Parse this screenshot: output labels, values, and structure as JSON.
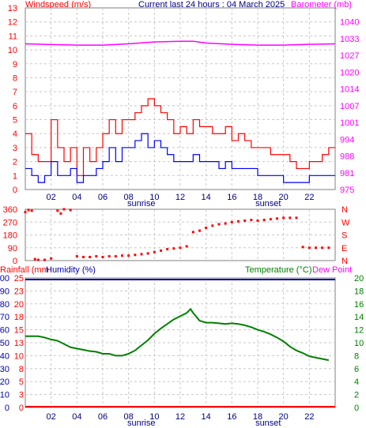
{
  "header": {
    "windspeed_label": "Windspeed (m/s)",
    "current_label": "Current last 24 hours : 04 March 2025",
    "barometer_label": "Barometer (mb)"
  },
  "time_axis": {
    "ticks": [
      "02",
      "04",
      "06",
      "08",
      "10",
      "12",
      "14",
      "16",
      "18",
      "20",
      "22"
    ],
    "hour_values": [
      2,
      4,
      6,
      8,
      10,
      12,
      14,
      16,
      18,
      20,
      22
    ],
    "sunrise_label": "sunrise",
    "sunset_label": "sunset",
    "sunrise_hour": 9.0,
    "sunset_hour": 18.8
  },
  "lower_header": {
    "rainfall_label": "Rainfall (mm",
    "humidity_label": "Humidity (%)",
    "temperature_label": "Temperature (°C)",
    "dewpoint_label": "Dew Point"
  },
  "colors": {
    "wind_gust": "#ff0000",
    "wind_avg": "#0000ff",
    "barometer": "#ff00ff",
    "direction": "#ff0000",
    "temperature": "#008000",
    "humidity": "#0000aa",
    "rainfall": "#ff0000",
    "frame": "#808080",
    "grid": "#c8c8c8"
  },
  "chart_data": [
    {
      "type": "line",
      "name": "wind-and-barometer",
      "x_unit": "hour",
      "xlim": [
        0,
        24
      ],
      "ylabel_left": "Windspeed (m/s)",
      "ylabel_right": "Barometer (mb)",
      "ylim_left": [
        0,
        13
      ],
      "y_ticks_left": [
        0,
        1,
        2,
        3,
        4,
        5,
        6,
        7,
        8,
        9,
        10,
        11,
        12,
        13
      ],
      "y_ticks_right": [
        "975",
        "981",
        "988",
        "994",
        "1001",
        "1007",
        "1014",
        "1020",
        "1027",
        "1033",
        "1040"
      ],
      "y_ticks_right_positions": [
        0,
        1.2,
        2.4,
        3.6,
        4.8,
        6.0,
        7.2,
        8.4,
        9.6,
        10.8,
        12.0
      ],
      "grid": true,
      "series": [
        {
          "name": "Gust",
          "x": [
            0,
            0.5,
            1,
            1.5,
            2,
            2.5,
            3,
            3.5,
            4,
            4.5,
            5,
            5.5,
            6,
            6.5,
            7,
            7.5,
            8,
            8.5,
            9,
            9.5,
            10,
            10.5,
            11,
            11.5,
            12,
            12.5,
            13,
            13.5,
            14,
            14.5,
            15,
            15.5,
            16,
            16.5,
            17,
            17.5,
            18,
            18.5,
            19,
            19.5,
            20,
            20.5,
            21,
            21.5,
            22,
            22.5,
            23,
            23.5
          ],
          "values": [
            4,
            2.5,
            2,
            2,
            5,
            3,
            2,
            3,
            1,
            3,
            2,
            3,
            4,
            5,
            4,
            5,
            5,
            5.5,
            6,
            6.5,
            6,
            5.5,
            5,
            4,
            4.5,
            4,
            5,
            4.5,
            4.5,
            4,
            4,
            4.5,
            3.5,
            4,
            3.5,
            3,
            3,
            3,
            2.5,
            2.5,
            2.5,
            2,
            1.5,
            1.5,
            2,
            2,
            2.5,
            3
          ]
        },
        {
          "name": "Average",
          "x": [
            0,
            0.5,
            1,
            1.5,
            2,
            2.5,
            3,
            3.5,
            4,
            4.5,
            5,
            5.5,
            6,
            6.5,
            7,
            7.5,
            8,
            8.5,
            9,
            9.5,
            10,
            10.5,
            11,
            11.5,
            12,
            12.5,
            13,
            13.5,
            14,
            14.5,
            15,
            15.5,
            16,
            16.5,
            17,
            17.5,
            18,
            18.5,
            19,
            19.5,
            20,
            20.5,
            21,
            21.5,
            22,
            22.5,
            23,
            23.5
          ],
          "values": [
            1.5,
            1,
            0.5,
            1,
            2,
            1,
            1,
            1.5,
            0.5,
            1,
            1,
            1.5,
            2,
            3,
            2,
            3,
            3,
            3.5,
            4,
            3,
            3.5,
            3,
            2.5,
            2,
            2,
            2,
            2.5,
            2,
            2,
            2,
            1.5,
            2,
            1.5,
            1.5,
            1.5,
            1.5,
            1,
            1,
            1,
            1,
            0.5,
            0.5,
            0.5,
            0.5,
            1,
            1,
            1,
            1
          ]
        },
        {
          "name": "Barometer",
          "x": [
            0,
            2,
            4,
            6,
            8,
            10,
            12,
            13,
            14,
            16,
            18,
            20,
            22,
            24
          ],
          "values": [
            1031.5,
            1031.2,
            1031,
            1031,
            1031.5,
            1032.2,
            1032.5,
            1032.5,
            1031.8,
            1031.3,
            1031,
            1031,
            1031.3,
            1031.5
          ]
        }
      ]
    },
    {
      "type": "scatter",
      "name": "wind-direction",
      "x_unit": "hour",
      "xlim": [
        0,
        24
      ],
      "ylim": [
        0,
        360
      ],
      "y_ticks_left": [
        "360",
        "270",
        "180",
        "90",
        "0"
      ],
      "y_ticks_left_values": [
        360,
        270,
        180,
        90,
        0
      ],
      "y_ticks_right": [
        "N",
        "W",
        "S",
        "E",
        "N"
      ],
      "y_ticks_right_values": [
        360,
        270,
        180,
        90,
        0
      ],
      "grid": true,
      "series": [
        {
          "name": "Direction",
          "x": [
            0,
            0.25,
            0.5,
            0.75,
            1,
            1.5,
            2,
            2.5,
            2.75,
            3,
            3.5,
            4,
            4.5,
            5,
            5.5,
            6,
            6.5,
            7,
            7.5,
            8,
            8.5,
            9,
            9.5,
            10,
            10.5,
            11,
            11.5,
            12,
            12.5,
            13,
            13.5,
            14,
            14.5,
            15,
            15.5,
            16,
            16.5,
            17,
            17.5,
            18,
            18.5,
            19,
            19.5,
            20,
            20.5,
            21,
            21.5,
            22,
            22.5,
            23,
            23.5
          ],
          "values": [
            340,
            355,
            350,
            10,
            5,
            5,
            15,
            350,
            330,
            360,
            355,
            30,
            25,
            25,
            30,
            25,
            30,
            30,
            35,
            35,
            40,
            45,
            50,
            60,
            70,
            80,
            85,
            90,
            100,
            200,
            210,
            230,
            245,
            255,
            260,
            270,
            275,
            280,
            285,
            280,
            285,
            290,
            295,
            300,
            300,
            300,
            95,
            90,
            90,
            90,
            90
          ]
        }
      ]
    },
    {
      "type": "line",
      "name": "temperature-humidity-rain",
      "x_unit": "hour",
      "xlim": [
        0,
        24
      ],
      "ylim_humidity": [
        0,
        100
      ],
      "ylim_temperature": [
        0,
        20
      ],
      "y_ticks_humidity": [
        0,
        10,
        20,
        30,
        40,
        50,
        60,
        70,
        80,
        90,
        100
      ],
      "y_ticks_rain": [
        "0",
        "3",
        "5",
        "8",
        "10",
        "13",
        "15",
        "18",
        "20",
        "23",
        "25"
      ],
      "y_ticks_temperature": [
        0,
        2,
        4,
        6,
        8,
        10,
        12,
        14,
        16,
        18,
        20
      ],
      "grid": true,
      "series": [
        {
          "name": "Temperature",
          "x": [
            0,
            0.5,
            1,
            1.5,
            2,
            2.5,
            3,
            3.5,
            4,
            4.5,
            5,
            5.5,
            6,
            6.5,
            7,
            7.5,
            8,
            8.5,
            9,
            9.5,
            10,
            10.5,
            11,
            11.5,
            12,
            12.5,
            12.8,
            13,
            13.5,
            14,
            14.5,
            15,
            15.5,
            16,
            16.5,
            17,
            17.5,
            18,
            18.5,
            19,
            19.5,
            20,
            20.5,
            21,
            21.5,
            22,
            22.5,
            23,
            23.5
          ],
          "values": [
            11.0,
            11.0,
            11.0,
            10.8,
            10.5,
            10.3,
            9.8,
            9.3,
            9.1,
            8.9,
            8.7,
            8.6,
            8.3,
            8.3,
            8.0,
            8.0,
            8.3,
            8.8,
            9.6,
            10.4,
            11.4,
            12.2,
            12.9,
            13.6,
            14.1,
            14.6,
            15.2,
            14.6,
            13.4,
            13.1,
            13.1,
            13.0,
            12.9,
            13.0,
            12.9,
            12.7,
            12.4,
            12.0,
            11.7,
            11.3,
            10.8,
            10.2,
            9.4,
            8.8,
            8.4,
            7.9,
            7.7,
            7.5,
            7.3
          ]
        },
        {
          "name": "Humidity",
          "x": [
            0,
            24
          ],
          "values": [
            100,
            100
          ]
        },
        {
          "name": "Rainfall",
          "x": [
            0,
            24
          ],
          "values": [
            0,
            0
          ]
        }
      ]
    }
  ]
}
